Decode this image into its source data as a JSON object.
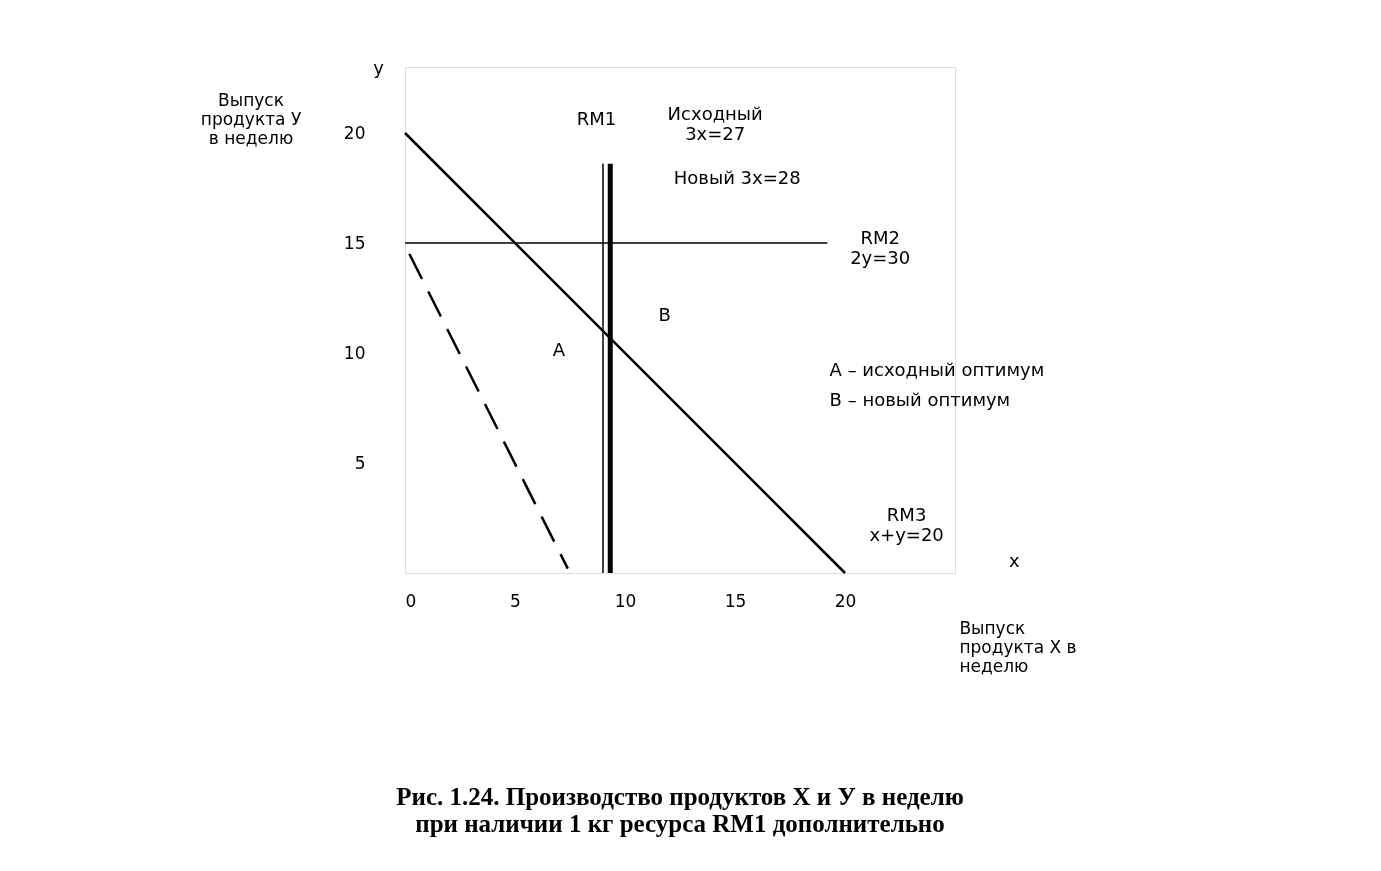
{
  "chart_data": {
    "type": "line",
    "title": "Рис. 1.24. Производство продуктов X и У в неделю при наличии 1 кг ресурса RM1 дополнительно",
    "xlabel": "Выпуск продукта X в неделю",
    "ylabel": "Выпуск продукта У в неделю",
    "xlim": [
      0,
      25
    ],
    "ylim": [
      0,
      23
    ],
    "xticks": [
      0,
      5,
      10,
      15,
      20
    ],
    "yticks": [
      5,
      10,
      15,
      20
    ],
    "grid": false,
    "marker": "none",
    "series": [
      {
        "color": "#000000",
        "x": [
          0,
          20
        ],
        "values": [
          20,
          0
        ],
        "line_style": "solid"
      },
      {
        "color": "#000000",
        "x": [
          0,
          19.2
        ],
        "values": [
          15,
          15
        ],
        "line_style": "solid"
      },
      {
        "color": "#000000",
        "x": [
          9,
          9
        ],
        "values": [
          0,
          18.6
        ],
        "line_style": "solid"
      },
      {
        "color": "#000000",
        "x": [
          9.33,
          9.33
        ],
        "values": [
          0,
          18.6
        ],
        "line_style": "solid"
      },
      {
        "color": "#000000",
        "x": [
          0.2,
          7.4
        ],
        "values": [
          14.5,
          0.2
        ],
        "line_style": "dashed"
      }
    ],
    "annotations": [
      "RM1",
      "Исходный\n3x=27",
      "Новый 3x=28",
      "RM2\n2y=30",
      "A",
      "B",
      "RM3\nx+y=20",
      "x",
      "y",
      "A – исходный оптимум",
      "B – новый оптимум"
    ]
  }
}
